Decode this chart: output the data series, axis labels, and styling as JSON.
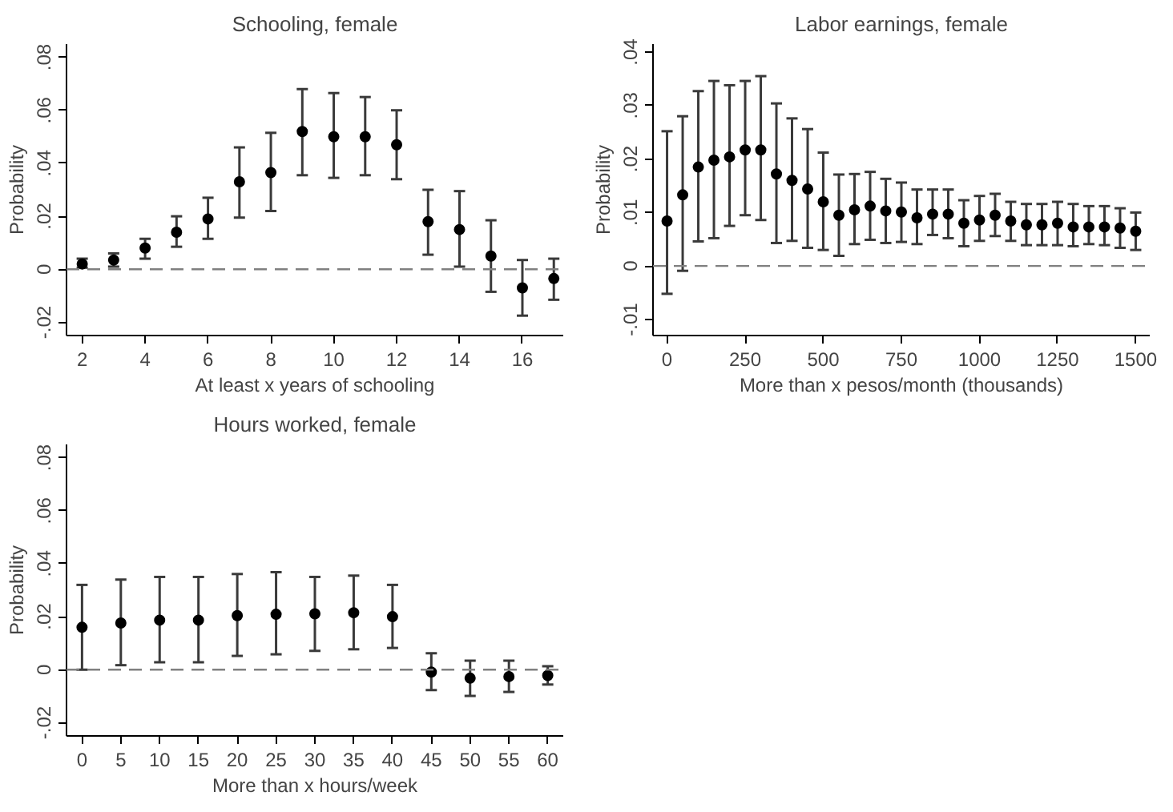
{
  "chart_data": [
    {
      "type": "scatter",
      "title": "Schooling, female",
      "xlabel": "At least x years of schooling",
      "ylabel": "Probability",
      "marker": "circle",
      "grid": false,
      "x": [
        2,
        3,
        4,
        5,
        6,
        7,
        8,
        9,
        10,
        11,
        12,
        13,
        14,
        15,
        16,
        17
      ],
      "series": [
        {
          "color": "#000000",
          "values": [
            0.002,
            0.0035,
            0.008,
            0.014,
            0.019,
            0.033,
            0.0365,
            0.052,
            0.05,
            0.05,
            0.047,
            0.018,
            0.015,
            0.005,
            -0.007,
            -0.0035
          ],
          "errors": [
            [
              0.0006,
              0.004
            ],
            [
              0.001,
              0.006
            ],
            [
              0.004,
              0.0115
            ],
            [
              0.0085,
              0.02
            ],
            [
              0.0115,
              0.027
            ],
            [
              0.0195,
              0.046
            ],
            [
              0.022,
              0.0515
            ],
            [
              0.0355,
              0.068
            ],
            [
              0.0345,
              0.0665
            ],
            [
              0.0355,
              0.065
            ],
            [
              0.034,
              0.06
            ],
            [
              0.0055,
              0.03
            ],
            [
              0.001,
              0.0295
            ],
            [
              -0.0085,
              0.0185
            ],
            [
              -0.0175,
              0.0035
            ],
            [
              -0.0115,
              0.004
            ]
          ]
        }
      ],
      "xlim": [
        1.5,
        17.3
      ],
      "ylim": [
        -0.025,
        0.085
      ],
      "xticks": [
        2,
        4,
        6,
        8,
        10,
        12,
        14,
        16
      ],
      "yticks": [
        {
          "value": -0.02,
          "label": "-.02"
        },
        {
          "value": 0,
          "label": "0"
        },
        {
          "value": 0.02,
          "label": ".02"
        },
        {
          "value": 0.04,
          "label": ".04"
        },
        {
          "value": 0.06,
          "label": ".06"
        },
        {
          "value": 0.08,
          "label": ".08"
        }
      ],
      "ref_lines": [
        {
          "axis": "y",
          "value": 0,
          "color": "#808080",
          "line_style": "dashed"
        }
      ]
    },
    {
      "type": "scatter",
      "title": "Labor earnings, female",
      "xlabel": "More than x pesos/month (thousands)",
      "ylabel": "Probability",
      "marker": "circle",
      "grid": false,
      "x": [
        0,
        50,
        100,
        150,
        200,
        250,
        300,
        350,
        400,
        450,
        500,
        550,
        600,
        650,
        700,
        750,
        800,
        850,
        900,
        950,
        1000,
        1050,
        1100,
        1150,
        1200,
        1250,
        1300,
        1350,
        1400,
        1450,
        1500
      ],
      "series": [
        {
          "color": "#000000",
          "values": [
            0.0084,
            0.0133,
            0.0185,
            0.0198,
            0.0204,
            0.0217,
            0.0217,
            0.0172,
            0.016,
            0.0144,
            0.012,
            0.0095,
            0.0105,
            0.0112,
            0.0103,
            0.0101,
            0.009,
            0.0097,
            0.0097,
            0.008,
            0.0086,
            0.0095,
            0.0084,
            0.0077,
            0.0077,
            0.008,
            0.0073,
            0.0073,
            0.0073,
            0.0071,
            0.0065
          ],
          "errors": [
            [
              -0.0052,
              0.0252
            ],
            [
              -0.0009,
              0.028
            ],
            [
              0.0046,
              0.0327
            ],
            [
              0.0052,
              0.0346
            ],
            [
              0.0075,
              0.0338
            ],
            [
              0.0095,
              0.0346
            ],
            [
              0.0086,
              0.0355
            ],
            [
              0.0043,
              0.0304
            ],
            [
              0.0047,
              0.0276
            ],
            [
              0.0034,
              0.0256
            ],
            [
              0.003,
              0.0212
            ],
            [
              0.0019,
              0.0171
            ],
            [
              0.0041,
              0.0172
            ],
            [
              0.0049,
              0.0176
            ],
            [
              0.0043,
              0.0163
            ],
            [
              0.0045,
              0.0156
            ],
            [
              0.0041,
              0.0143
            ],
            [
              0.0058,
              0.0143
            ],
            [
              0.0052,
              0.0143
            ],
            [
              0.0037,
              0.0123
            ],
            [
              0.0047,
              0.0131
            ],
            [
              0.0056,
              0.0135
            ],
            [
              0.0047,
              0.012
            ],
            [
              0.0039,
              0.0116
            ],
            [
              0.0039,
              0.0116
            ],
            [
              0.0039,
              0.012
            ],
            [
              0.0037,
              0.0116
            ],
            [
              0.0041,
              0.0112
            ],
            [
              0.0039,
              0.0112
            ],
            [
              0.0034,
              0.0108
            ],
            [
              0.003,
              0.01
            ]
          ]
        }
      ],
      "xlim": [
        -45,
        1545
      ],
      "ylim": [
        -0.013,
        0.0415
      ],
      "xticks": [
        0,
        250,
        500,
        750,
        1000,
        1250,
        1500
      ],
      "yticks": [
        {
          "value": -0.01,
          "label": "-.01"
        },
        {
          "value": 0,
          "label": "0"
        },
        {
          "value": 0.01,
          "label": ".01"
        },
        {
          "value": 0.02,
          "label": ".02"
        },
        {
          "value": 0.03,
          "label": ".03"
        },
        {
          "value": 0.04,
          "label": ".04"
        }
      ],
      "ref_lines": [
        {
          "axis": "y",
          "value": 0,
          "color": "#808080",
          "line_style": "dashed"
        }
      ]
    },
    {
      "type": "scatter",
      "title": "Hours worked, female",
      "xlabel": "More than x hours/week",
      "ylabel": "Probability",
      "marker": "circle",
      "grid": false,
      "x": [
        0,
        5,
        10,
        15,
        20,
        25,
        30,
        35,
        40,
        45,
        50,
        55,
        60
      ],
      "series": [
        {
          "color": "#000000",
          "values": [
            0.016,
            0.0176,
            0.0187,
            0.0187,
            0.0204,
            0.0209,
            0.0211,
            0.0215,
            0.02,
            -0.0009,
            -0.0032,
            -0.0026,
            -0.0022
          ],
          "errors": [
            [
              0.0,
              0.032
            ],
            [
              0.0017,
              0.034
            ],
            [
              0.0028,
              0.035
            ],
            [
              0.0028,
              0.035
            ],
            [
              0.0052,
              0.0361
            ],
            [
              0.0058,
              0.0368
            ],
            [
              0.0071,
              0.035
            ],
            [
              0.0077,
              0.0355
            ],
            [
              0.0082,
              0.032
            ],
            [
              -0.0077,
              0.0062
            ],
            [
              -0.0099,
              0.0034
            ],
            [
              -0.0084,
              0.0034
            ],
            [
              -0.0056,
              0.0013
            ]
          ]
        }
      ],
      "xlim": [
        -2,
        62
      ],
      "ylim": [
        -0.025,
        0.085
      ],
      "xticks": [
        0,
        5,
        10,
        15,
        20,
        25,
        30,
        35,
        40,
        45,
        50,
        55,
        60
      ],
      "yticks": [
        {
          "value": -0.02,
          "label": "-.02"
        },
        {
          "value": 0,
          "label": "0"
        },
        {
          "value": 0.02,
          "label": ".02"
        },
        {
          "value": 0.04,
          "label": ".04"
        },
        {
          "value": 0.06,
          "label": ".06"
        },
        {
          "value": 0.08,
          "label": ".08"
        }
      ],
      "ref_lines": [
        {
          "axis": "y",
          "value": 0,
          "color": "#808080",
          "line_style": "dashed"
        }
      ]
    }
  ]
}
